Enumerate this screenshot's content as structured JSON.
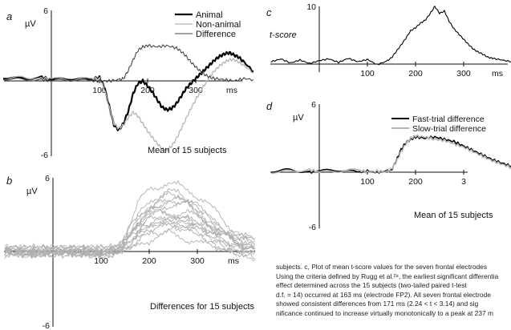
{
  "chart_data": [
    {
      "panel": "a",
      "type": "line",
      "ylabel": "µV",
      "xtick_labels": [
        "100",
        "200",
        "300",
        "ms"
      ],
      "ytick_labels": [
        "6",
        "-6"
      ],
      "xlim": [
        -100,
        420
      ],
      "ylim": [
        -6,
        6
      ],
      "annotation": "Mean of 15 subjects",
      "legend_position": "top-right",
      "series": [
        {
          "name": "Animal",
          "color": "#000000",
          "x": [
            -100,
            -60,
            -20,
            0,
            40,
            80,
            100,
            110,
            120,
            130,
            140,
            150,
            160,
            170,
            180,
            190,
            200,
            210,
            220,
            230,
            240,
            250,
            260,
            270,
            280,
            290,
            300,
            310,
            320,
            330,
            340,
            350,
            360,
            370,
            380,
            390,
            400,
            420
          ],
          "y": [
            0.3,
            0.2,
            0.3,
            0.1,
            0.2,
            0.1,
            0.3,
            -0.5,
            -2.0,
            -3.5,
            -3.9,
            -3.4,
            -2.4,
            -1.0,
            -0.2,
            0.0,
            -0.4,
            -0.9,
            -1.5,
            -2.1,
            -2.3,
            -2.2,
            -1.8,
            -1.2,
            -0.6,
            -0.2,
            0.2,
            0.6,
            1.0,
            1.4,
            1.8,
            2.1,
            2.3,
            2.4,
            2.2,
            2.0,
            1.6,
            0.8
          ]
        },
        {
          "name": "Non-animal",
          "color": "#b5b5b5",
          "x": [
            -100,
            -60,
            -20,
            0,
            40,
            80,
            100,
            110,
            120,
            130,
            140,
            150,
            160,
            170,
            180,
            190,
            200,
            210,
            220,
            230,
            240,
            250,
            260,
            270,
            280,
            290,
            300,
            310,
            320,
            330,
            340,
            350,
            360,
            370,
            380,
            390,
            400,
            420
          ],
          "y": [
            0.2,
            0.3,
            0.2,
            0.2,
            0.1,
            0.2,
            0.2,
            -0.6,
            -2.1,
            -3.4,
            -3.8,
            -3.5,
            -2.9,
            -2.5,
            -2.8,
            -3.4,
            -4.0,
            -4.5,
            -5.0,
            -5.4,
            -5.5,
            -5.2,
            -4.6,
            -3.8,
            -3.0,
            -2.2,
            -1.5,
            -0.8,
            -0.2,
            0.4,
            0.9,
            1.3,
            1.6,
            1.8,
            1.8,
            1.6,
            1.3,
            0.7
          ]
        },
        {
          "name": "Difference",
          "color": "#444444",
          "x": [
            -100,
            -60,
            -20,
            0,
            40,
            80,
            100,
            120,
            140,
            150,
            160,
            170,
            180,
            190,
            200,
            220,
            240,
            260,
            270,
            280,
            290,
            300,
            310,
            320,
            330,
            340,
            360,
            380,
            400,
            420
          ],
          "y": [
            0.2,
            0.1,
            0.1,
            0.0,
            0.1,
            0.0,
            0.0,
            0.0,
            0.1,
            0.2,
            0.9,
            1.8,
            2.6,
            2.9,
            3.0,
            2.9,
            3.0,
            2.8,
            2.5,
            2.1,
            1.6,
            1.2,
            0.8,
            0.5,
            0.3,
            0.2,
            0.1,
            0.0,
            0.2,
            0.1
          ]
        }
      ]
    },
    {
      "panel": "b",
      "type": "line",
      "ylabel": "µV",
      "xtick_labels": [
        "100",
        "200",
        "300",
        "ms"
      ],
      "ytick_labels": [
        "6",
        "-6"
      ],
      "xlim": [
        -100,
        420
      ],
      "ylim": [
        -6,
        6
      ],
      "annotation": "Differences for 15 subjects",
      "series_color": "#b0b0b0",
      "series_count": 15,
      "x": [
        -100,
        -80,
        -60,
        -40,
        -20,
        0,
        20,
        40,
        60,
        80,
        100,
        120,
        140,
        160,
        180,
        200,
        220,
        240,
        260,
        280,
        300,
        320,
        340,
        360,
        380,
        400,
        420
      ],
      "mean_y": [
        0,
        0,
        0,
        0,
        0,
        0,
        0,
        0,
        0,
        0,
        0,
        0,
        0.2,
        1.0,
        2.0,
        2.6,
        2.9,
        3.1,
        3.0,
        2.8,
        2.4,
        1.9,
        1.4,
        1.0,
        0.6,
        0.4,
        0.2
      ],
      "subject_scale": [
        1.0,
        0.7,
        1.3,
        0.9,
        1.5,
        0.6,
        1.1,
        0.8,
        1.4,
        1.2,
        0.5,
        1.0,
        1.6,
        0.9,
        1.2
      ],
      "subject_offset": [
        0.3,
        -0.2,
        0.5,
        -0.4,
        0.1,
        0.6,
        -0.5,
        0.2,
        -0.1,
        0.4,
        -0.3,
        0.0,
        0.7,
        -0.6,
        0.2
      ]
    },
    {
      "panel": "c",
      "type": "line",
      "ylabel": "t-score",
      "xtick_labels": [
        "100",
        "200",
        "300",
        "ms"
      ],
      "ytick_labels": [
        "10"
      ],
      "xlim": [
        -100,
        420
      ],
      "ylim": [
        -1,
        10
      ],
      "series": [
        {
          "name": "",
          "color": "#000000",
          "x": [
            -100,
            -80,
            -60,
            -40,
            -20,
            0,
            20,
            40,
            60,
            80,
            100,
            120,
            140,
            150,
            160,
            170,
            180,
            190,
            200,
            210,
            220,
            230,
            240,
            250,
            260,
            270,
            280,
            290,
            300,
            310,
            320,
            330,
            340,
            350,
            360,
            380,
            400,
            420
          ],
          "y": [
            0.4,
            0.9,
            0.2,
            0.7,
            0.1,
            0.6,
            0.9,
            0.3,
            1.0,
            0.4,
            0.8,
            -0.1,
            0.5,
            1.1,
            2.2,
            3.3,
            4.5,
            5.8,
            6.3,
            7.1,
            7.6,
            8.7,
            10.0,
            8.8,
            9.2,
            7.4,
            6.1,
            5.2,
            4.3,
            3.4,
            2.6,
            2.1,
            1.7,
            1.2,
            1.0,
            0.7,
            0.4,
            0.6
          ]
        }
      ]
    },
    {
      "panel": "d",
      "type": "line",
      "ylabel": "µV",
      "xtick_labels": [
        "100",
        "200",
        "3"
      ],
      "ytick_labels": [
        "6",
        "-6"
      ],
      "xlim": [
        -100,
        420
      ],
      "ylim": [
        -6,
        6
      ],
      "annotation": "Mean of 15 subjects",
      "legend_position": "top-right",
      "series": [
        {
          "name": "Fast-trial difference",
          "color": "#000000",
          "x": [
            -100,
            -60,
            -20,
            0,
            40,
            80,
            100,
            120,
            140,
            150,
            160,
            170,
            180,
            190,
            200,
            220,
            240,
            260,
            280,
            300,
            320,
            340,
            360,
            380,
            400,
            420
          ],
          "y": [
            0.1,
            0.2,
            0.0,
            0.1,
            0.2,
            0.0,
            0.1,
            0.0,
            0.1,
            0.2,
            1.0,
            2.0,
            2.6,
            2.9,
            3.1,
            3.0,
            3.1,
            2.9,
            2.7,
            2.3,
            1.9,
            1.5,
            1.1,
            0.8,
            0.5,
            0.3
          ]
        },
        {
          "name": "Slow-trial difference",
          "color": "#b5b5b5",
          "x": [
            -100,
            -60,
            -20,
            0,
            40,
            80,
            100,
            120,
            140,
            150,
            160,
            170,
            180,
            190,
            200,
            220,
            240,
            260,
            280,
            300,
            320,
            340,
            360,
            380,
            400,
            420
          ],
          "y": [
            0.0,
            0.1,
            0.2,
            0.0,
            0.1,
            0.2,
            0.0,
            0.1,
            0.0,
            0.3,
            0.9,
            1.8,
            2.5,
            3.0,
            3.2,
            3.1,
            2.9,
            2.8,
            2.5,
            2.2,
            1.8,
            1.4,
            1.0,
            0.7,
            0.4,
            0.2
          ]
        }
      ]
    }
  ],
  "caption": {
    "lines": [
      "subjects. c, Plot of mean t-score values for the seven frontal electrodes",
      "Using the criteria defined by Rugg et al.²⁸, the earliest significant differentia",
      "effect determined across the 15 subjects (two-tailed paired t-test",
      "d.f. = 14) occurred at 163 ms (electrode FP2). All seven frontal electrode",
      "showed consistent differences from 171 ms (2.24 < t < 3.14) and sig",
      "nificance continued to increase virtually monotonically to a peak at 237 m"
    ]
  }
}
